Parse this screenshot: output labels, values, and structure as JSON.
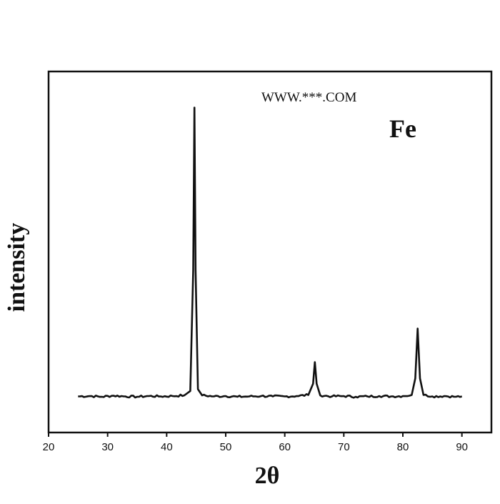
{
  "chart_data": {
    "type": "line",
    "title": "",
    "xlabel": "2θ",
    "ylabel": "intensity",
    "xlim": [
      20,
      95
    ],
    "ylim": [
      0,
      100
    ],
    "x_ticks": [
      20,
      30,
      40,
      50,
      60,
      70,
      80,
      90
    ],
    "y_ticks": [],
    "grid": false,
    "legend": "none",
    "annotations": [
      "Fe"
    ],
    "watermark": "WWW.***.COM",
    "line_color": "#111111",
    "series": [
      {
        "points": [
          [
            25,
            10
          ],
          [
            27,
            10.1
          ],
          [
            29,
            9.9
          ],
          [
            31,
            10.2
          ],
          [
            33,
            10
          ],
          [
            35,
            9.9
          ],
          [
            37,
            10.1
          ],
          [
            39,
            10
          ],
          [
            41,
            10.1
          ],
          [
            43,
            10.3
          ],
          [
            44,
            11.5
          ],
          [
            44.5,
            45
          ],
          [
            44.7,
            90
          ],
          [
            44.9,
            45
          ],
          [
            45.3,
            12
          ],
          [
            46,
            10.3
          ],
          [
            48,
            10
          ],
          [
            50,
            10.1
          ],
          [
            52,
            9.9
          ],
          [
            54,
            10
          ],
          [
            56,
            10.1
          ],
          [
            58,
            10
          ],
          [
            60,
            10
          ],
          [
            62,
            10.1
          ],
          [
            64,
            10.4
          ],
          [
            64.8,
            13.5
          ],
          [
            65.1,
            19.5
          ],
          [
            65.4,
            13.5
          ],
          [
            66,
            10.3
          ],
          [
            68,
            10
          ],
          [
            70,
            10.1
          ],
          [
            72,
            9.9
          ],
          [
            74,
            10
          ],
          [
            76,
            10.1
          ],
          [
            78,
            10
          ],
          [
            80,
            10.1
          ],
          [
            81.5,
            10.4
          ],
          [
            82.1,
            15
          ],
          [
            82.5,
            28.8
          ],
          [
            82.9,
            15
          ],
          [
            83.5,
            10.4
          ],
          [
            85,
            10
          ],
          [
            87,
            10.1
          ],
          [
            89,
            9.9
          ],
          [
            90,
            10
          ]
        ]
      }
    ]
  }
}
